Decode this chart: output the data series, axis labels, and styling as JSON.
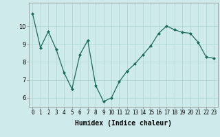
{
  "x": [
    0,
    1,
    2,
    3,
    4,
    5,
    6,
    7,
    8,
    9,
    10,
    11,
    12,
    13,
    14,
    15,
    16,
    17,
    18,
    19,
    20,
    21,
    22,
    23
  ],
  "y": [
    10.7,
    8.8,
    9.7,
    8.7,
    7.4,
    6.5,
    8.4,
    9.2,
    6.7,
    5.8,
    6.0,
    6.9,
    7.5,
    7.9,
    8.4,
    8.9,
    9.6,
    10.0,
    9.8,
    9.65,
    9.6,
    9.1,
    8.3,
    8.2
  ],
  "line_color": "#1a6b5e",
  "marker": "D",
  "marker_size": 2,
  "bg_color": "#ceeaea",
  "grid_color": "#b0d8d8",
  "xlabel": "Humidex (Indice chaleur)",
  "ylim": [
    5.5,
    11.3
  ],
  "xlim": [
    -0.5,
    23.5
  ],
  "yticks": [
    6,
    7,
    8,
    9,
    10
  ],
  "xticks": [
    0,
    1,
    2,
    3,
    4,
    5,
    6,
    7,
    8,
    9,
    10,
    11,
    12,
    13,
    14,
    15,
    16,
    17,
    18,
    19,
    20,
    21,
    22,
    23
  ],
  "tick_fontsize": 5.5,
  "xlabel_fontsize": 7,
  "ytick_fontsize": 6
}
